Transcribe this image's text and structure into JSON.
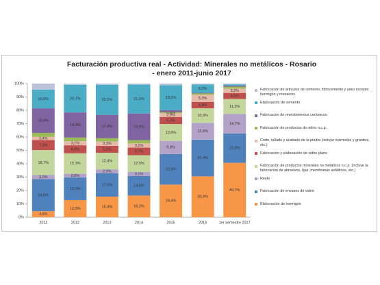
{
  "chart_data": {
    "type": "stacked_bar_100",
    "title": "Facturación productiva real - Actividad: Minerales no metálicos - Rosario - enero 2011-junio 2017",
    "categories": [
      "2011",
      "2012",
      "2013",
      "2014",
      "2015",
      "2016",
      "1er semestre 2017"
    ],
    "ylim": [
      0,
      100
    ],
    "yticks": [
      {
        "value": 0,
        "label": "0%"
      },
      {
        "value": 10,
        "label": "10%"
      },
      {
        "value": 20,
        "label": "20%"
      },
      {
        "value": 30,
        "label": "30%"
      },
      {
        "value": 40,
        "label": "40%"
      },
      {
        "value": 50,
        "label": "50%"
      },
      {
        "value": 60,
        "label": "60%"
      },
      {
        "value": 70,
        "label": "70%"
      },
      {
        "value": 80,
        "label": "80%"
      },
      {
        "value": 90,
        "label": "90%"
      },
      {
        "value": 100,
        "label": "100%"
      }
    ],
    "grid": false,
    "series": [
      {
        "name": "Elaboración de hormigón",
        "color": "#f79646",
        "values": [
          4.5,
          12.8,
          15.4,
          16.2,
          24.4,
          30.6,
          40.7
        ],
        "value_labels": [
          "4,5%",
          "12,8%",
          "15,4%",
          "16,2%",
          "24,4%",
          "30,6%",
          "40,7%"
        ]
      },
      {
        "name": "Fabricación de envases de vidrio",
        "color": "#4f81bd",
        "values": [
          24.0,
          16.9,
          17.5,
          14.6,
          22.9,
          27.4,
          21.9
        ],
        "value_labels": [
          "24,0%",
          "16,9%",
          "17,5%",
          "14,6%",
          "22,9%",
          "27,4%",
          "21,9%"
        ]
      },
      {
        "name": "Resto",
        "color": "#b3a2c7",
        "values": [
          3.0,
          2.8,
          2.9,
          3.1,
          9.8,
          12.6,
          14.7
        ],
        "value_labels": [
          "3,0%",
          "2,8%",
          "2,9%",
          "3,1%",
          "9,8%",
          "12,6%",
          "14,7%"
        ]
      },
      {
        "name": "Fabricación de productos minerales no metálicos n.c.p. (incluye la fabricación de abrasivos, lijas, membranas asfálticas, etc.)",
        "color": "#c3d69b",
        "values": [
          18.7,
          15.3,
          12.4,
          12.5,
          12.6,
          10.9,
          11.2
        ],
        "value_labels": [
          "18,7%",
          "15,3%",
          "12,4%",
          "12,5%",
          "12,6%",
          "10,9%",
          "11,2%"
        ]
      },
      {
        "name": "Fabricación y elaboración de vidrio plano",
        "color": "#c0504d",
        "values": [
          7.5,
          6.0,
          5.2,
          5.7,
          5.3,
          4.8,
          4.5
        ],
        "value_labels": [
          "7,5%",
          "6,0%",
          "5,2%",
          "5,7%",
          "5,3%",
          "4,8%",
          "4,5%"
        ]
      },
      {
        "name": "Corte, tallado y acabado de la piedra (incluye mármoles y granitos, etc.)",
        "color": "#e6b9a8",
        "values": [
          2.4,
          3.1,
          3.3,
          3.1,
          2.9,
          5.3,
          3.2
        ],
        "value_labels": [
          "2,4%",
          "3,1%",
          "3,3%",
          "3,1%",
          "2,9%",
          "5,3%",
          "3,2%"
        ]
      },
      {
        "name": "Fabricación de productos de vidrio n.c.p.",
        "color": "#9bbb59",
        "values": [
          3.0,
          2.7,
          2.5,
          2.5,
          0.8,
          1.0,
          1.5
        ],
        "value_labels": [
          null,
          null,
          null,
          null,
          "0,8%",
          null,
          null
        ]
      },
      {
        "name": "Fabricación de revestimientos cerámicos",
        "color": "#8064a2",
        "values": [
          18.4,
          18.8,
          17.4,
          19.9,
          1.4,
          0.5,
          0.8
        ],
        "value_labels": [
          "18,4%",
          "18,8%",
          "17,4%",
          "19,9%",
          null,
          null,
          null
        ]
      },
      {
        "name": "Elaboración de cemento",
        "color": "#4bacc6",
        "values": [
          13.9,
          20.7,
          22.5,
          21.6,
          18.6,
          6.2,
          0.9
        ],
        "value_labels": [
          "13,9%",
          "20,7%",
          "22,5%",
          "21,6%",
          "18,6%",
          "6,2%",
          null
        ]
      },
      {
        "name": "Fabricación de artículos de cemento, fibrocemento y yeso excepto hormigón y mosaicos",
        "color": "#b9c2d9",
        "values": [
          4.6,
          0.8,
          0.9,
          0.8,
          1.3,
          0.7,
          0.6
        ],
        "value_labels": [
          null,
          null,
          null,
          null,
          null,
          null,
          null
        ]
      }
    ]
  }
}
